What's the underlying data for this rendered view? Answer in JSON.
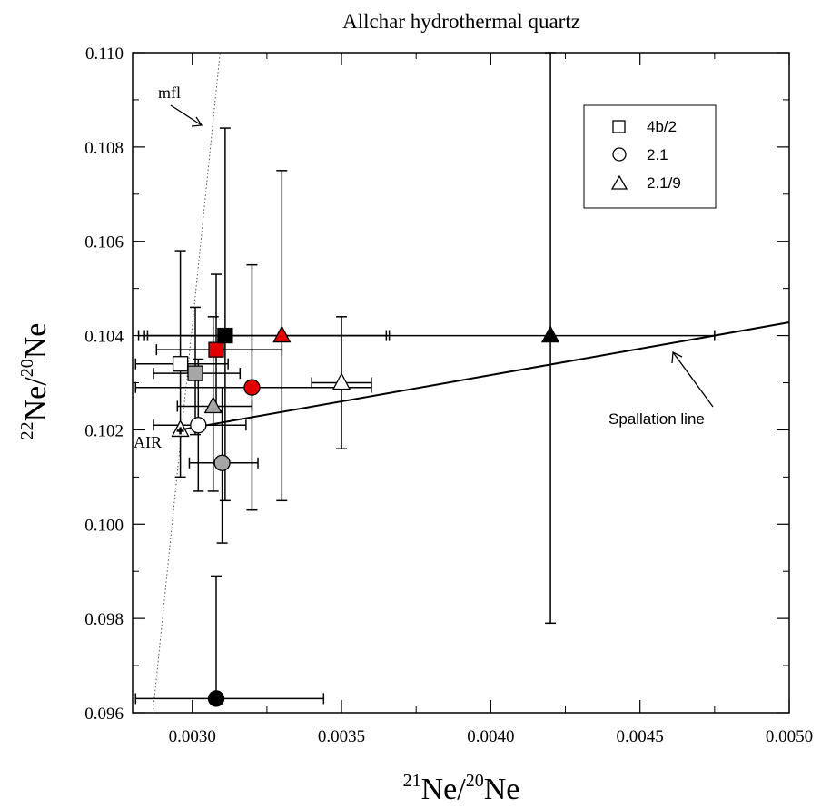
{
  "chart_data": {
    "type": "scatter",
    "title": "Allchar hydrothermal quartz",
    "xlabel": {
      "sup1": "21",
      "base1": "Ne/",
      "sup2": "20",
      "base2": "Ne"
    },
    "ylabel": {
      "sup1": "22",
      "base1": "Ne/",
      "sup2": "20",
      "base2": "Ne"
    },
    "xlim": [
      0.0028,
      0.005
    ],
    "ylim": [
      0.096,
      0.11
    ],
    "x_ticks": [
      "0.0030",
      "0.0035",
      "0.0040",
      "0.0045",
      "0.0050"
    ],
    "y_ticks": [
      "0.096",
      "0.098",
      "0.100",
      "0.102",
      "0.104",
      "0.106",
      "0.108",
      "0.110"
    ],
    "grid": false,
    "legend_position": "top-right",
    "legend": [
      {
        "marker": "square",
        "label": "4b/2"
      },
      {
        "marker": "circle",
        "label": "2.1"
      },
      {
        "marker": "triangle",
        "label": "2.1/9"
      }
    ],
    "series": [
      {
        "name": "4b/2",
        "marker": "square",
        "points": [
          {
            "x": 0.00296,
            "y": 0.1034,
            "fill": "#ffffff",
            "xerr": [
              0.00281,
              0.00312
            ],
            "yerr": [
              0.101,
              0.1058
            ]
          },
          {
            "x": 0.00301,
            "y": 0.1032,
            "fill": "#a6a6a6",
            "xerr": [
              0.00287,
              0.00316
            ],
            "yerr": [
              0.1019,
              0.1046
            ]
          },
          {
            "x": 0.00308,
            "y": 0.1037,
            "fill": "#e00000",
            "xerr": [
              0.00288,
              0.0033
            ],
            "yerr": [
              0.1024,
              0.1053
            ]
          },
          {
            "x": 0.00311,
            "y": 0.104,
            "fill": "#000000",
            "xerr": [
              0.00282,
              0.00366
            ],
            "yerr": [
              0.1005,
              0.1084
            ]
          }
        ]
      },
      {
        "name": "2.1",
        "marker": "circle",
        "points": [
          {
            "x": 0.00302,
            "y": 0.1021,
            "fill": "#ffffff",
            "xerr": [
              0.00287,
              0.00318
            ],
            "yerr": [
              0.1007,
              0.1035
            ]
          },
          {
            "x": 0.0031,
            "y": 0.1013,
            "fill": "#a6a6a6",
            "xerr": [
              0.00299,
              0.00322
            ],
            "yerr": [
              0.0996,
              0.1029
            ]
          },
          {
            "x": 0.0032,
            "y": 0.1029,
            "fill": "#e00000",
            "xerr": [
              0.00281,
              0.0036
            ],
            "yerr": [
              0.1003,
              0.1055
            ]
          },
          {
            "x": 0.00308,
            "y": 0.0963,
            "fill": "#000000",
            "xerr": [
              0.00281,
              0.00344
            ],
            "yerr": [
              0.0963,
              0.0989
            ]
          }
        ]
      },
      {
        "name": "2.1/9",
        "marker": "triangle",
        "points": [
          {
            "x": 0.0035,
            "y": 0.103,
            "fill": "#ffffff",
            "xerr": [
              0.0034,
              0.0036
            ],
            "yerr": [
              0.1016,
              0.1044
            ]
          },
          {
            "x": 0.00307,
            "y": 0.1025,
            "fill": "#a6a6a6",
            "xerr": [
              0.00295,
              0.0032
            ],
            "yerr": [
              0.1007,
              0.1044
            ]
          },
          {
            "x": 0.0033,
            "y": 0.104,
            "fill": "#e00000",
            "xerr": [
              0.00285,
              0.00365
            ],
            "yerr": [
              0.1005,
              0.1075
            ]
          },
          {
            "x": 0.0042,
            "y": 0.104,
            "fill": "#000000",
            "xerr": [
              0.00284,
              0.00475
            ],
            "yerr": [
              0.0979,
              0.11
            ]
          }
        ]
      }
    ],
    "reference_points": [
      {
        "label": "AIR",
        "x": 0.00296,
        "y": 0.102,
        "marker": "triangle-plus"
      }
    ],
    "lines": [
      {
        "label": "Spallation line",
        "style": "solid",
        "x": [
          0.00296,
          0.005
        ],
        "y": [
          0.102,
          0.10428
        ]
      },
      {
        "label": "mfl",
        "style": "dotted",
        "x": [
          0.002868,
          0.003093
        ],
        "y": [
          0.096,
          0.11
        ]
      }
    ]
  }
}
